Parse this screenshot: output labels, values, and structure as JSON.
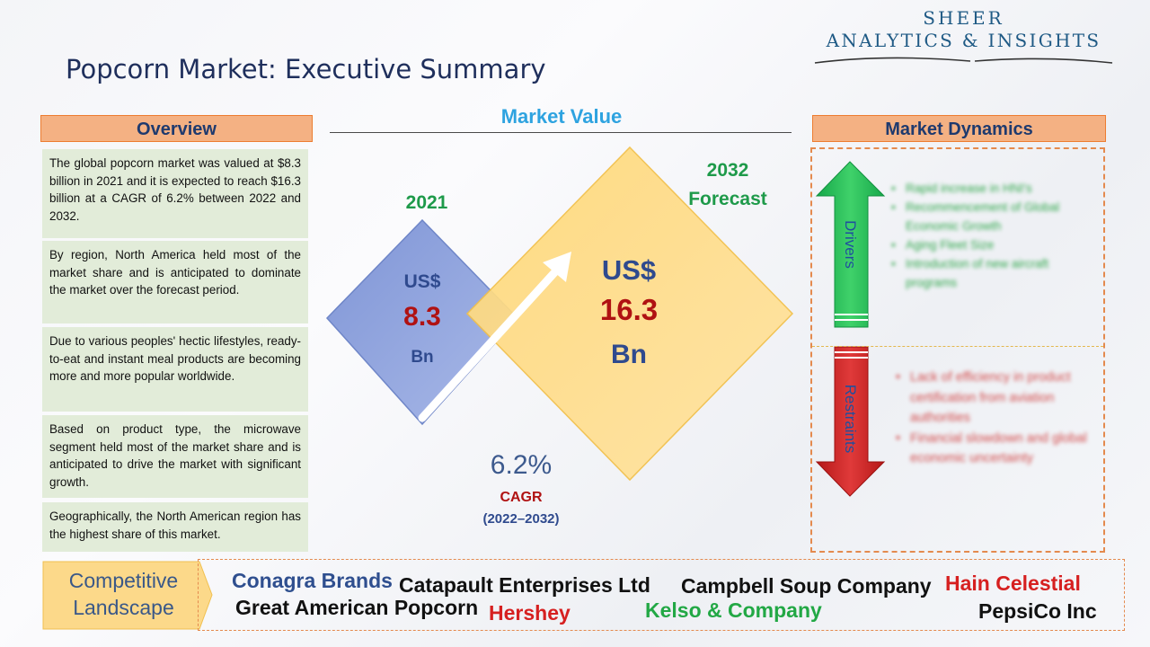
{
  "header": {
    "title": "Popcorn Market: Executive Summary",
    "logo_line1": "SHEER",
    "logo_line2": "ANALYTICS & INSIGHTS"
  },
  "overview": {
    "title": "Overview",
    "items": [
      "The global popcorn market was valued at $8.3 billion in 2021 and it is expected to reach $16.3 billion at a CAGR of 6.2% between 2022 and 2032.",
      "By region, North America held most of the market share and is anticipated to dominate the market over the forecast period.",
      "Due to various peoples' hectic lifestyles, ready-to-eat and instant meal products are becoming more and more popular worldwide.",
      "Based on product type, the microwave segment held most of the market share and is anticipated to drive the market with significant growth.",
      "Geographically, the North American region has the highest share of this market."
    ]
  },
  "market_value": {
    "title": "Market Value",
    "year_2021": "2021",
    "forecast_2032": "2032 Forecast",
    "v2021_currency": "US$",
    "v2021_value": "8.3",
    "v2021_unit": "Bn",
    "v2032_currency": "US$",
    "v2032_value": "16.3",
    "v2032_unit": "Bn",
    "cagr_value": "6.2%",
    "cagr_label": "CAGR",
    "cagr_period": "(2022–2032)"
  },
  "market_dynamics": {
    "title": "Market Dynamics",
    "drivers_label": "Drivers",
    "restraints_label": "Restraints",
    "drivers": [
      "Rapid increase in HNI's",
      "Recommencement of Global Economic Growth",
      "Aging Fleet Size",
      "Introduction of new aircraft programs"
    ],
    "restraints": [
      "Lack of efficiency in product certification from aviation authorities",
      "Financial slowdown and global economic uncertainty"
    ]
  },
  "competitive_landscape": {
    "label_line1": "Competitive",
    "label_line2": "Landscape",
    "companies": [
      {
        "name": "Conagra Brands",
        "color": "#2f4f8f"
      },
      {
        "name": "Catapault Enterprises Ltd",
        "color": "#111111"
      },
      {
        "name": "Campbell Soup Company",
        "color": "#111111"
      },
      {
        "name": "Hain Celestial",
        "color": "#d62020"
      },
      {
        "name": "Great American Popcorn",
        "color": "#111111"
      },
      {
        "name": "Hershey",
        "color": "#d62020"
      },
      {
        "name": "Kelso & Company",
        "color": "#22a845"
      },
      {
        "name": "PepsiCo Inc",
        "color": "#111111"
      }
    ]
  },
  "colors": {
    "accent_orange": "#f4b183",
    "overview_bg": "#e2ecd9",
    "green_title": "#1e9a4a",
    "value_red": "#b01212",
    "value_blue": "#2f4a8e",
    "market_value_title": "#2ea3e0"
  }
}
